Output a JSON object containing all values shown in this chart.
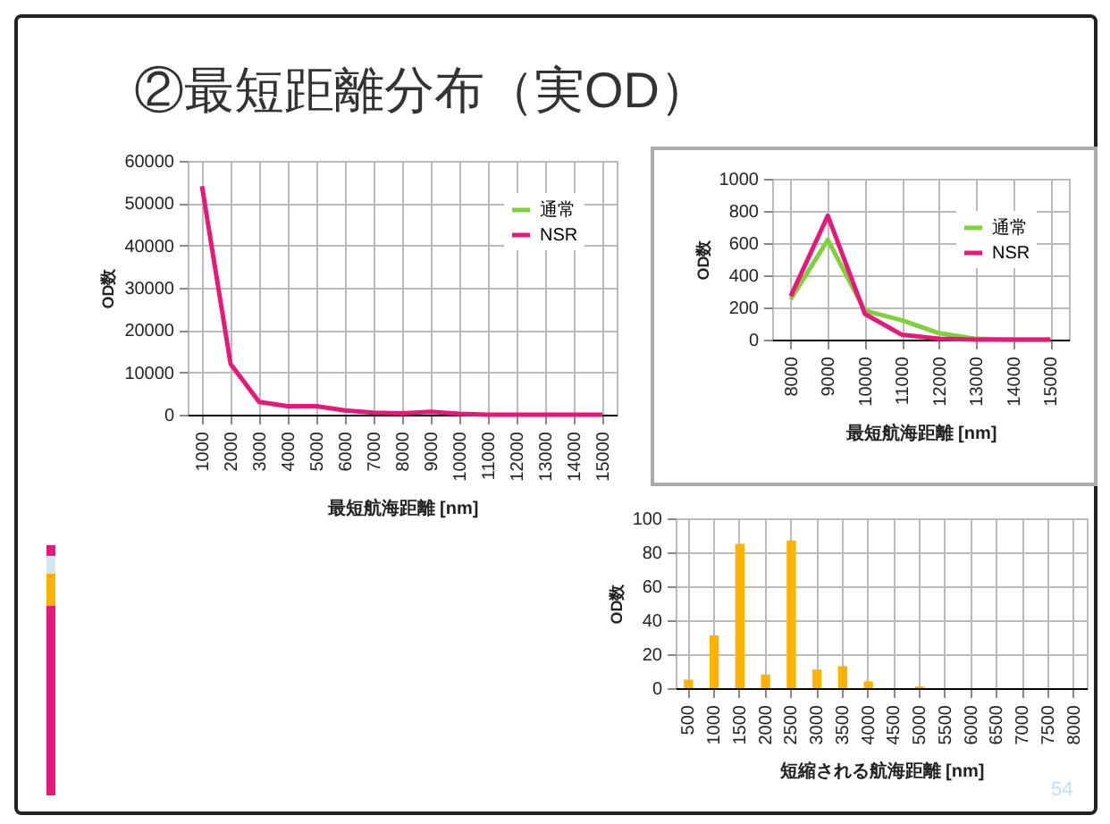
{
  "chart_data": [
    {
      "type": "line",
      "title": "②最短距離分布（実OD）",
      "xlabel": "最短航海距離 [nm]",
      "ylabel": "OD数",
      "categories": [
        "1000",
        "2000",
        "3000",
        "4000",
        "5000",
        "6000",
        "7000",
        "8000",
        "9000",
        "10000",
        "11000",
        "12000",
        "13000",
        "14000",
        "15000"
      ],
      "series": [
        {
          "name": "通常",
          "color": "#7ed13b",
          "values": [
            null,
            null,
            null,
            null,
            null,
            null,
            null,
            null,
            null,
            null,
            null,
            null,
            null,
            null,
            null
          ]
        },
        {
          "name": "NSR",
          "color": "#e6197a",
          "values": [
            54000,
            12000,
            3000,
            2000,
            2000,
            1000,
            500,
            300,
            700,
            200,
            0,
            0,
            0,
            0,
            0
          ]
        }
      ],
      "ylim": [
        0,
        60000
      ],
      "yticks": [
        0,
        10000,
        20000,
        30000,
        40000,
        50000,
        60000
      ],
      "grid": true,
      "legend": "top right"
    },
    {
      "type": "line",
      "xlabel": "最短航海距離 [nm]",
      "ylabel": "OD数",
      "categories": [
        "8000",
        "9000",
        "10000",
        "11000",
        "12000",
        "13000",
        "14000",
        "15000"
      ],
      "series": [
        {
          "name": "通常",
          "color": "#7ed13b",
          "values": [
            250,
            620,
            180,
            120,
            40,
            5,
            0,
            0
          ]
        },
        {
          "name": "NSR",
          "color": "#e6197a",
          "values": [
            270,
            770,
            160,
            30,
            5,
            0,
            0,
            0
          ]
        }
      ],
      "ylim": [
        0,
        1000
      ],
      "yticks": [
        0,
        200,
        400,
        600,
        800,
        1000
      ],
      "grid": true,
      "legend": "top right"
    },
    {
      "type": "bar",
      "xlabel": "短縮される航海距離 [nm]",
      "ylabel": "OD数",
      "categories": [
        "500",
        "1000",
        "1500",
        "2000",
        "2500",
        "3000",
        "3500",
        "4000",
        "4500",
        "5000",
        "5500",
        "6000",
        "6500",
        "7000",
        "7500",
        "8000"
      ],
      "values": [
        5,
        31,
        85,
        8,
        87,
        11,
        13,
        4,
        0,
        1,
        0,
        0,
        0,
        0,
        0,
        0
      ],
      "color": "#ffb300",
      "ylim": [
        0,
        100
      ],
      "yticks": [
        0,
        20,
        40,
        60,
        80,
        100
      ],
      "grid": true,
      "annotations": [
        "54"
      ]
    }
  ]
}
